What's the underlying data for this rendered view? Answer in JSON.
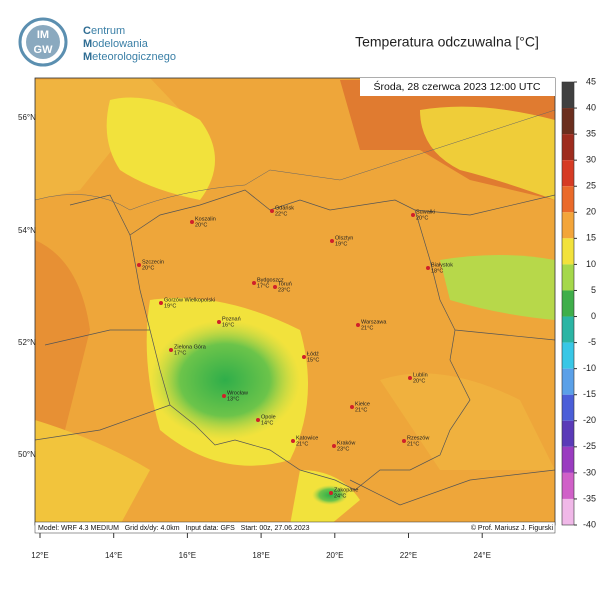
{
  "header": {
    "logo": [
      "IM",
      "GW"
    ],
    "org": [
      {
        "initial": "C",
        "rest": "entrum"
      },
      {
        "initial": "M",
        "rest": "odelowania"
      },
      {
        "initial": "M",
        "rest": "eteorologicznego"
      }
    ],
    "title": "Temperatura odczuwalna [°C]"
  },
  "map": {
    "valid_time": "Środa, 28 czerwca 2023 12:00 UTC",
    "lat_labels": [
      "56°N",
      "54°N",
      "52°N",
      "50°N"
    ],
    "lon_labels": [
      "12°E",
      "14°E",
      "16°E",
      "18°E",
      "20°E",
      "22°E",
      "24°E"
    ],
    "cities": [
      {
        "name": "Koszalin",
        "temp": "20°C"
      },
      {
        "name": "Gdańsk",
        "temp": "22°C"
      },
      {
        "name": "Suwałki",
        "temp": "20°C"
      },
      {
        "name": "Szczecin",
        "temp": "20°C"
      },
      {
        "name": "Olsztyn",
        "temp": "19°C"
      },
      {
        "name": "Bydgoszcz",
        "temp": "17°C"
      },
      {
        "name": "Toruń",
        "temp": "23°C"
      },
      {
        "name": "Białystok",
        "temp": "18°C"
      },
      {
        "name": "Gorzów Wielkopolski",
        "temp": "19°C"
      },
      {
        "name": "Poznań",
        "temp": "16°C"
      },
      {
        "name": "Warszawa",
        "temp": "21°C"
      },
      {
        "name": "Zielona Góra",
        "temp": "17°C"
      },
      {
        "name": "Łódź",
        "temp": "15°C"
      },
      {
        "name": "Lublin",
        "temp": "20°C"
      },
      {
        "name": "Wrocław",
        "temp": "13°C"
      },
      {
        "name": "Kielce",
        "temp": "21°C"
      },
      {
        "name": "Opole",
        "temp": "14°C"
      },
      {
        "name": "Rzeszów",
        "temp": "21°C"
      },
      {
        "name": "Katowice",
        "temp": "21°C"
      },
      {
        "name": "Kraków",
        "temp": "23°C"
      },
      {
        "name": "Zakopane",
        "temp": "24°C"
      }
    ],
    "footer": "Model: WRF 4.3 MEDIUM   Grid dx/dy: 4.0km   Input data: GFS   Start: 00z, 27.06.2023",
    "credit": "© Prof. Mariusz J. Figurski"
  },
  "colorbar": {
    "ticks": [
      45,
      40,
      35,
      30,
      25,
      20,
      15,
      10,
      5,
      0,
      -5,
      -10,
      -15,
      -20,
      -25,
      -30,
      -35,
      -40
    ],
    "colors": [
      "#404040",
      "#6b2e1e",
      "#9e2c1e",
      "#d63b24",
      "#ea6a2a",
      "#f3a53a",
      "#f2e23c",
      "#a5d84a",
      "#3fae4a",
      "#2bb5a4",
      "#38c7e6",
      "#5aa0e8",
      "#4a5ed8",
      "#5a3ab8",
      "#9a3cc0",
      "#d060c8",
      "#f0b8e8"
    ]
  }
}
